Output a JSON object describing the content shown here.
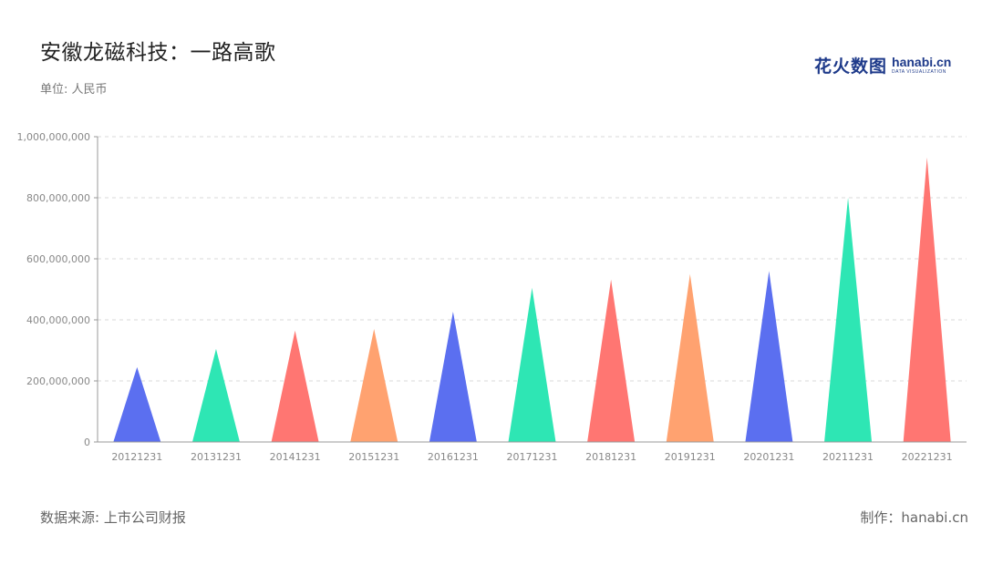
{
  "header": {
    "title": "安徽龙磁科技：一路高歌",
    "unit": "单位: 人民币"
  },
  "logo": {
    "cn": "花火数图",
    "en": "hanabi.cn",
    "sub": "DATA VISUALIZATION"
  },
  "footer": {
    "source": "数据来源: 上市公司财报",
    "credit": "制作：hanabi.cn"
  },
  "palette": [
    "#5b6ff0",
    "#2ee6b4",
    "#ff7672",
    "#ffa270"
  ],
  "chart_data": {
    "type": "bar",
    "mark_shape": "triangle",
    "categories": [
      "20121231",
      "20131231",
      "20141231",
      "20151231",
      "20161231",
      "20171231",
      "20181231",
      "20191231",
      "20201231",
      "20211231",
      "20221231"
    ],
    "values": [
      245000000,
      305000000,
      365000000,
      370000000,
      427000000,
      505000000,
      532000000,
      550000000,
      560000000,
      800000000,
      932000000
    ],
    "ylim": [
      0,
      1000000000
    ],
    "yticks": [
      0,
      200000000,
      400000000,
      600000000,
      800000000,
      1000000000
    ],
    "ytick_labels": [
      "0",
      "200,000,000",
      "400,000,000",
      "600,000,000",
      "800,000,000",
      "1,000,000,000"
    ],
    "color_index": [
      0,
      1,
      2,
      3,
      0,
      1,
      2,
      3,
      0,
      1,
      2
    ],
    "grid": true,
    "legend": "none"
  }
}
